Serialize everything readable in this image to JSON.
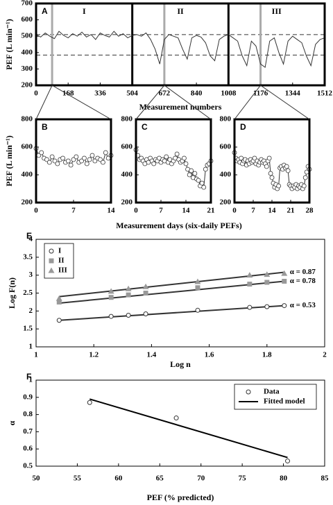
{
  "chart_data": [
    {
      "type": "line",
      "panel": "A",
      "ylabel": "PEF (L min⁻¹)",
      "xlabel": "Measurement numbers",
      "xlim": [
        0,
        1512
      ],
      "xticks": [
        0,
        168,
        336,
        504,
        672,
        840,
        1008,
        1176,
        1344,
        1512
      ],
      "ylim": [
        200,
        700
      ],
      "yticks": [
        200,
        300,
        400,
        500,
        600,
        700
      ],
      "section_labels": [
        "I",
        "II",
        "III"
      ],
      "dividers": [
        504,
        1008
      ],
      "windows": [
        84,
        672,
        1176
      ],
      "hlines": [
        510,
        385
      ],
      "color": "#333333",
      "x": [
        0,
        24,
        48,
        72,
        96,
        120,
        144,
        168,
        192,
        216,
        240,
        264,
        288,
        312,
        336,
        360,
        384,
        408,
        432,
        456,
        480,
        504,
        528,
        552,
        576,
        600,
        624,
        648,
        672,
        696,
        720,
        744,
        768,
        792,
        816,
        840,
        864,
        888,
        912,
        936,
        960,
        984,
        1008,
        1032,
        1056,
        1080,
        1104,
        1128,
        1152,
        1176,
        1200,
        1224,
        1248,
        1272,
        1296,
        1320,
        1344,
        1368,
        1392,
        1416,
        1440,
        1464,
        1488,
        1512
      ],
      "values": [
        510,
        495,
        520,
        500,
        485,
        530,
        505,
        490,
        515,
        500,
        525,
        495,
        510,
        480,
        520,
        505,
        495,
        530,
        500,
        515,
        490,
        505,
        510,
        500,
        520,
        480,
        420,
        330,
        480,
        510,
        500,
        490,
        420,
        360,
        490,
        505,
        495,
        460,
        380,
        350,
        480,
        500,
        510,
        490,
        470,
        380,
        320,
        470,
        440,
        330,
        310,
        470,
        490,
        400,
        330,
        470,
        500,
        480,
        460,
        380,
        320,
        450,
        480,
        490
      ]
    },
    {
      "type": "line",
      "panel": "B",
      "ylabel": "PEF (L min⁻¹)",
      "marker": "circle",
      "color": "#333333",
      "xlim": [
        0,
        14
      ],
      "xticks": [
        0,
        7,
        14
      ],
      "ylim": [
        200,
        800
      ],
      "yticks": [
        200,
        400,
        600,
        800
      ],
      "x": [
        0,
        0.5,
        1,
        1.5,
        2,
        2.5,
        3,
        3.5,
        4,
        4.5,
        5,
        5.5,
        6,
        6.5,
        7,
        7.5,
        8,
        8.5,
        9,
        9.5,
        10,
        10.5,
        11,
        11.5,
        12,
        12.5,
        13,
        13.5,
        14
      ],
      "values": [
        590,
        540,
        560,
        520,
        510,
        490,
        530,
        500,
        480,
        510,
        520,
        490,
        500,
        470,
        510,
        530,
        490,
        500,
        520,
        480,
        510,
        540,
        500,
        520,
        510,
        490,
        560,
        520,
        540
      ]
    },
    {
      "type": "line",
      "panel": "C",
      "xlabel": "Measurement days (six-daily PEFs)",
      "marker": "circle",
      "color": "#333333",
      "xlim": [
        0,
        21
      ],
      "xticks": [
        0,
        7,
        14,
        21
      ],
      "ylim": [
        200,
        800
      ],
      "yticks": [
        200,
        400,
        600,
        800
      ],
      "x": [
        0,
        0.5,
        1,
        1.5,
        2,
        2.5,
        3,
        3.5,
        4,
        4.5,
        5,
        5.5,
        6,
        6.5,
        7,
        7.5,
        8,
        8.5,
        9,
        9.5,
        10,
        10.5,
        11,
        11.5,
        12,
        12.5,
        13,
        13.5,
        14,
        14.5,
        15,
        15.5,
        16,
        16.5,
        17,
        17.5,
        18,
        18.5,
        19,
        19.5,
        20,
        20.5,
        21
      ],
      "values": [
        580,
        540,
        510,
        520,
        500,
        480,
        510,
        490,
        520,
        500,
        480,
        510,
        500,
        520,
        490,
        510,
        500,
        530,
        490,
        510,
        480,
        500,
        520,
        550,
        510,
        490,
        500,
        520,
        480,
        440,
        400,
        430,
        380,
        410,
        370,
        360,
        320,
        340,
        310,
        440,
        470,
        480,
        500
      ]
    },
    {
      "type": "line",
      "panel": "D",
      "marker": "circle",
      "color": "#333333",
      "xlim": [
        0,
        28
      ],
      "xticks": [
        0,
        7,
        14,
        21,
        28
      ],
      "ylim": [
        200,
        800
      ],
      "yticks": [
        200,
        400,
        600,
        800
      ],
      "x": [
        0,
        0.5,
        1,
        1.5,
        2,
        2.5,
        3,
        3.5,
        4,
        4.5,
        5,
        5.5,
        6,
        6.5,
        7,
        7.5,
        8,
        8.5,
        9,
        9.5,
        10,
        10.5,
        11,
        11.5,
        12,
        12.5,
        13,
        13.5,
        14,
        14.5,
        15,
        15.5,
        16,
        16.5,
        17,
        17.5,
        18,
        18.5,
        19,
        19.5,
        20,
        20.5,
        21,
        21.5,
        22,
        22.5,
        23,
        23.5,
        24,
        24.5,
        25,
        25.5,
        26,
        26.5,
        27,
        27.5,
        28
      ],
      "values": [
        560,
        520,
        500,
        510,
        490,
        520,
        480,
        500,
        510,
        470,
        500,
        480,
        510,
        490,
        500,
        520,
        480,
        500,
        470,
        490,
        510,
        490,
        500,
        480,
        460,
        500,
        520,
        410,
        380,
        340,
        310,
        330,
        300,
        320,
        450,
        460,
        440,
        470,
        450,
        460,
        430,
        330,
        320,
        300,
        320,
        310,
        330,
        300,
        320,
        310,
        330,
        300,
        320,
        380,
        420,
        460,
        440
      ]
    },
    {
      "type": "scatter",
      "panel": "E",
      "ylabel": "Log F(n)",
      "xlabel": "Log n",
      "legend": "upper left",
      "xlim": [
        1,
        2
      ],
      "xticks": [
        1,
        1.2,
        1.4,
        1.6,
        1.8,
        2
      ],
      "ylim": [
        1,
        4
      ],
      "yticks": [
        1,
        1.5,
        2,
        2.5,
        3,
        3.5,
        4
      ],
      "x": [
        1.08,
        1.26,
        1.32,
        1.38,
        1.56,
        1.74,
        1.8,
        1.86
      ],
      "series": [
        {
          "name": "I",
          "marker": "circle",
          "color": "#ffffff",
          "values": [
            1.74,
            1.85,
            1.88,
            1.92,
            2.02,
            2.1,
            2.12,
            2.15
          ]
        },
        {
          "name": "II",
          "marker": "square",
          "color": "#999999",
          "values": [
            2.25,
            2.38,
            2.45,
            2.5,
            2.65,
            2.75,
            2.8,
            2.83
          ]
        },
        {
          "name": "III",
          "marker": "triangle",
          "color": "#999999",
          "values": [
            2.35,
            2.55,
            2.62,
            2.68,
            2.82,
            3.0,
            3.02,
            3.05
          ]
        }
      ],
      "fits": [
        {
          "label": "α = 0.53",
          "x": [
            1.08,
            1.86
          ],
          "values": [
            1.74,
            2.15
          ]
        },
        {
          "label": "α = 0.78",
          "x": [
            1.08,
            1.86
          ],
          "values": [
            2.22,
            2.83
          ]
        },
        {
          "label": "α = 0.87",
          "x": [
            1.08,
            1.86
          ],
          "values": [
            2.4,
            3.08
          ]
        }
      ]
    },
    {
      "type": "scatter",
      "panel": "F",
      "ylabel": "α",
      "xlabel": "PEF (% predicted)",
      "legend": "upper right",
      "xlim": [
        50,
        85
      ],
      "xticks": [
        50,
        55,
        60,
        65,
        70,
        75,
        80,
        85
      ],
      "ylim": [
        0.5,
        1
      ],
      "yticks": [
        0.5,
        0.6,
        0.7,
        0.8,
        0.9,
        1
      ],
      "series": [
        {
          "name": "Data",
          "marker": "circle",
          "color": "#ffffff",
          "x": [
            56.5,
            67,
            80.5
          ],
          "values": [
            0.87,
            0.78,
            0.53
          ]
        },
        {
          "name": "Fitted model",
          "style": "line",
          "color": "#000000",
          "x": [
            56.5,
            80.5
          ],
          "values": [
            0.89,
            0.55
          ]
        }
      ]
    }
  ]
}
